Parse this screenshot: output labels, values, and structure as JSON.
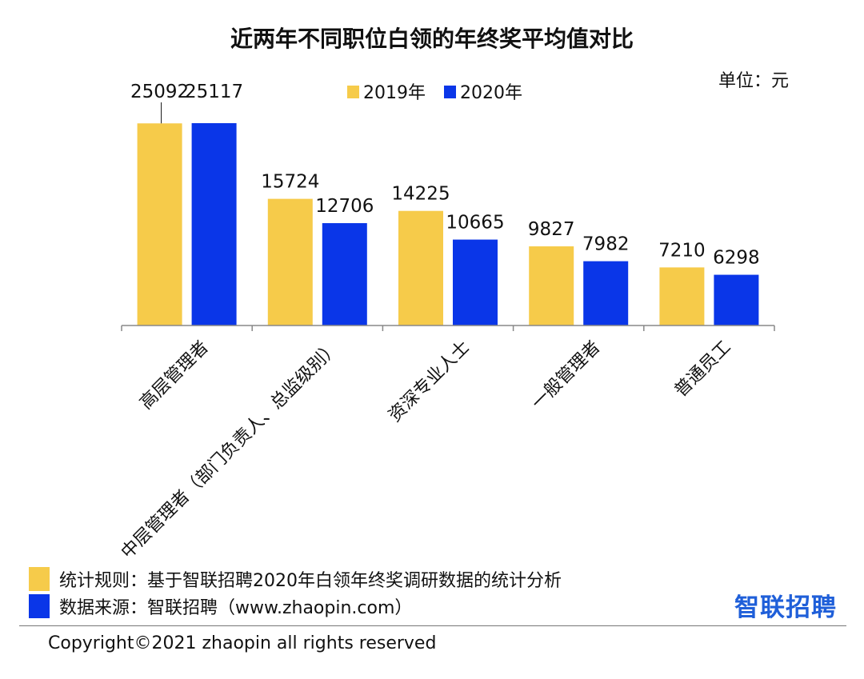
{
  "chart_data": {
    "type": "bar",
    "title": "近两年不同职位白领的年终奖平均值对比",
    "unit_label": "单位：元",
    "categories": [
      "高层管理者",
      "中层管理者（部门负责人、总监级别）",
      "资深专业人士",
      "一般管理者",
      "普通员工"
    ],
    "series": [
      {
        "name": "2019年",
        "color": "#f6cb4a",
        "values": [
          25092,
          15724,
          14225,
          9827,
          7210
        ]
      },
      {
        "name": "2020年",
        "color": "#0a36e8",
        "values": [
          25117,
          12706,
          10665,
          7982,
          6298
        ]
      }
    ],
    "ylim": [
      0,
      25117
    ],
    "legend_position": "top-center",
    "grid": false
  },
  "footer": {
    "rule_label": "统计规则：基于智联招聘2020年白领年终奖调研数据的统计分析",
    "source_label": "数据来源：智联招聘（www.zhaopin.com）",
    "rule_color": "#f6cb4a",
    "source_color": "#0a36e8",
    "brand": "智联招聘",
    "copyright": "Copyright©2021 zhaopin all rights reserved"
  }
}
